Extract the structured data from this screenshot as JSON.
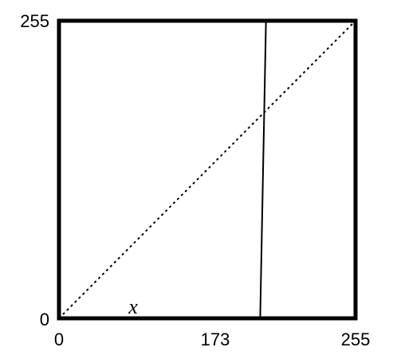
{
  "chart_data": {
    "type": "line",
    "title": "",
    "xlabel": "",
    "ylabel": "",
    "xlim": [
      0,
      255
    ],
    "ylim": [
      0,
      255
    ],
    "grid": false,
    "x_tick_labels": [
      "0",
      "173",
      "255"
    ],
    "y_tick_labels": [
      "0",
      "255"
    ],
    "annotation": "x",
    "series": [
      {
        "style": "solid",
        "color": "#000000",
        "x": [
          0,
          173,
          178,
          255
        ],
        "y": [
          0,
          0,
          255,
          255
        ]
      },
      {
        "style": "dotted",
        "color": "#000000",
        "x": [
          0,
          255
        ],
        "y": [
          0,
          255
        ]
      }
    ]
  }
}
